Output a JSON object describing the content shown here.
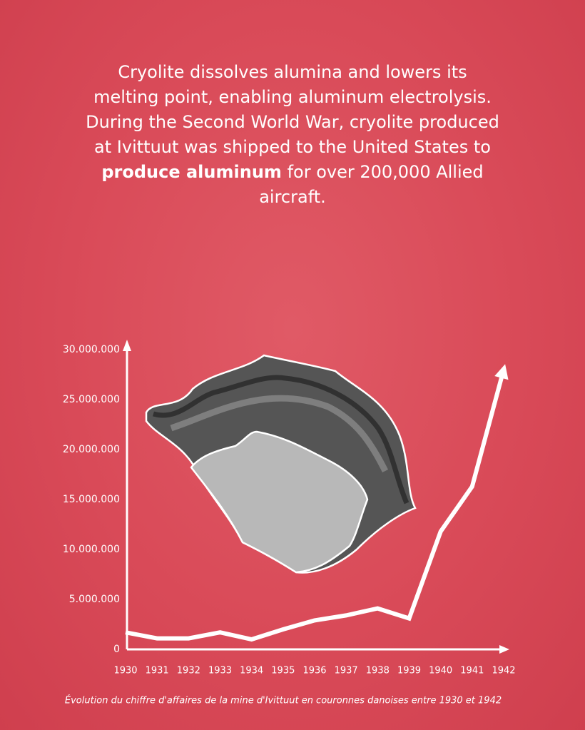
{
  "text": {
    "intro": "Cryolite dissolves alumina and lowers its melting point, enabling aluminum electrolysis. During the Second World War, cryolite produced at Ivittuut was shipped to the United States to",
    "highlight": "produce aluminum",
    "outro": "for over 200,000 Allied aircraft."
  },
  "chart_data": {
    "type": "line",
    "caption": "Évolution du chiffre d'affaires de la mine d'Ivittuut en couronnes danoises entre 1930 et 1942",
    "x": [
      1930,
      1931,
      1932,
      1933,
      1934,
      1935,
      1936,
      1937,
      1938,
      1939,
      1940,
      1941,
      1942
    ],
    "series": [
      {
        "color": "#ffffff",
        "values": [
          1700000,
          1100000,
          1100000,
          1700000,
          1000000,
          2000000,
          2900000,
          3400000,
          4100000,
          3100000,
          11800000,
          16300000,
          28000000
        ]
      }
    ],
    "xlim": [
      1930,
      1942
    ],
    "xticks": [
      1930,
      1931,
      1932,
      1933,
      1934,
      1935,
      1936,
      1937,
      1938,
      1939,
      1940,
      1941,
      1942
    ],
    "ylim": [
      0,
      30000000
    ],
    "yticks": [
      0,
      {
        "value": 5000000,
        "label": "5.000.000"
      },
      {
        "value": 10000000,
        "label": "10.000.000"
      },
      {
        "value": 15000000,
        "label": "15.000.000"
      },
      {
        "value": 20000000,
        "label": "20.000.000"
      },
      {
        "value": 25000000,
        "label": "25.000.000"
      },
      {
        "value": 30000000,
        "label": "30.000.000"
      }
    ]
  }
}
